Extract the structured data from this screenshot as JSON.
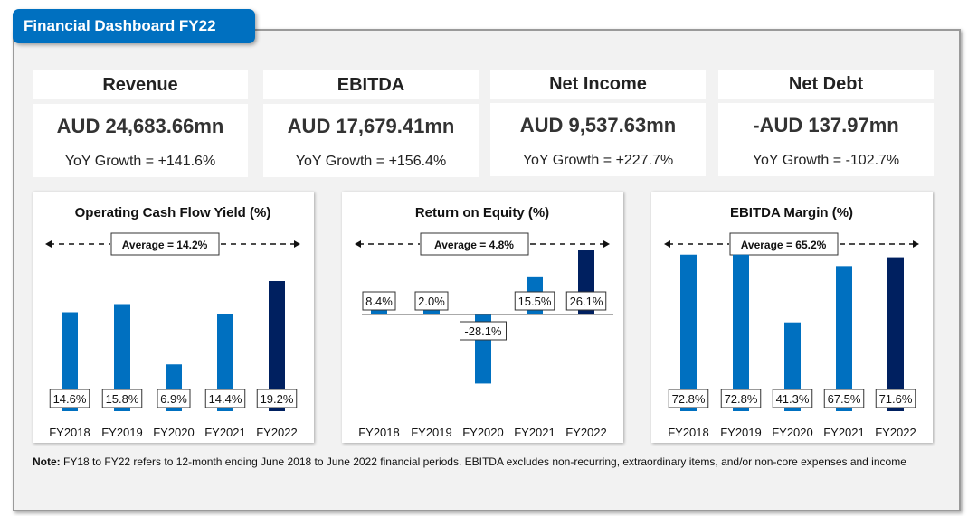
{
  "title": "Financial Dashboard FY22",
  "kpis": [
    {
      "label": "Revenue",
      "value": "AUD 24,683.66mn",
      "growth": "YoY Growth = +141.6%"
    },
    {
      "label": "EBITDA",
      "value": "AUD 17,679.41mn",
      "growth": "YoY Growth = +156.4%"
    },
    {
      "label": "Net Income",
      "value": "AUD 9,537.63mn",
      "growth": "YoY Growth = +227.7%"
    },
    {
      "label": "Net Debt",
      "value": "-AUD 137.97mn",
      "growth": "YoY Growth = -102.7%"
    }
  ],
  "colors": {
    "bar": "#0070c0",
    "highlight": "#002060",
    "accent": "#0070c0"
  },
  "chart_data": [
    {
      "type": "bar",
      "title": "Operating Cash Flow Yield (%)",
      "average_label": "Average = 14.2%",
      "categories": [
        "FY2018",
        "FY2019",
        "FY2020",
        "FY2021",
        "FY2022"
      ],
      "values": [
        14.6,
        15.8,
        6.9,
        14.4,
        19.2
      ],
      "labels": [
        "14.6%",
        "15.8%",
        "6.9%",
        "14.4%",
        "19.2%"
      ]
    },
    {
      "type": "bar",
      "title": "Return on Equity (%)",
      "average_label": "Average = 4.8%",
      "categories": [
        "FY2018",
        "FY2019",
        "FY2020",
        "FY2021",
        "FY2022"
      ],
      "values": [
        8.4,
        2.0,
        -28.1,
        15.5,
        26.1
      ],
      "labels": [
        "8.4%",
        "2.0%",
        "-28.1%",
        "15.5%",
        "26.1%"
      ]
    },
    {
      "type": "bar",
      "title": "EBITDA Margin (%)",
      "average_label": "Average = 65.2%",
      "categories": [
        "FY2018",
        "FY2019",
        "FY2020",
        "FY2021",
        "FY2022"
      ],
      "values": [
        72.8,
        72.8,
        41.3,
        67.5,
        71.6
      ],
      "labels": [
        "72.8%",
        "72.8%",
        "41.3%",
        "67.5%",
        "71.6%"
      ]
    }
  ],
  "note": {
    "label": "Note:",
    "text": " FY18 to FY22 refers to 12-month ending June 2018 to June 2022 financial periods. EBITDA excludes non-recurring, extraordinary items, and/or non-core expenses and income"
  }
}
